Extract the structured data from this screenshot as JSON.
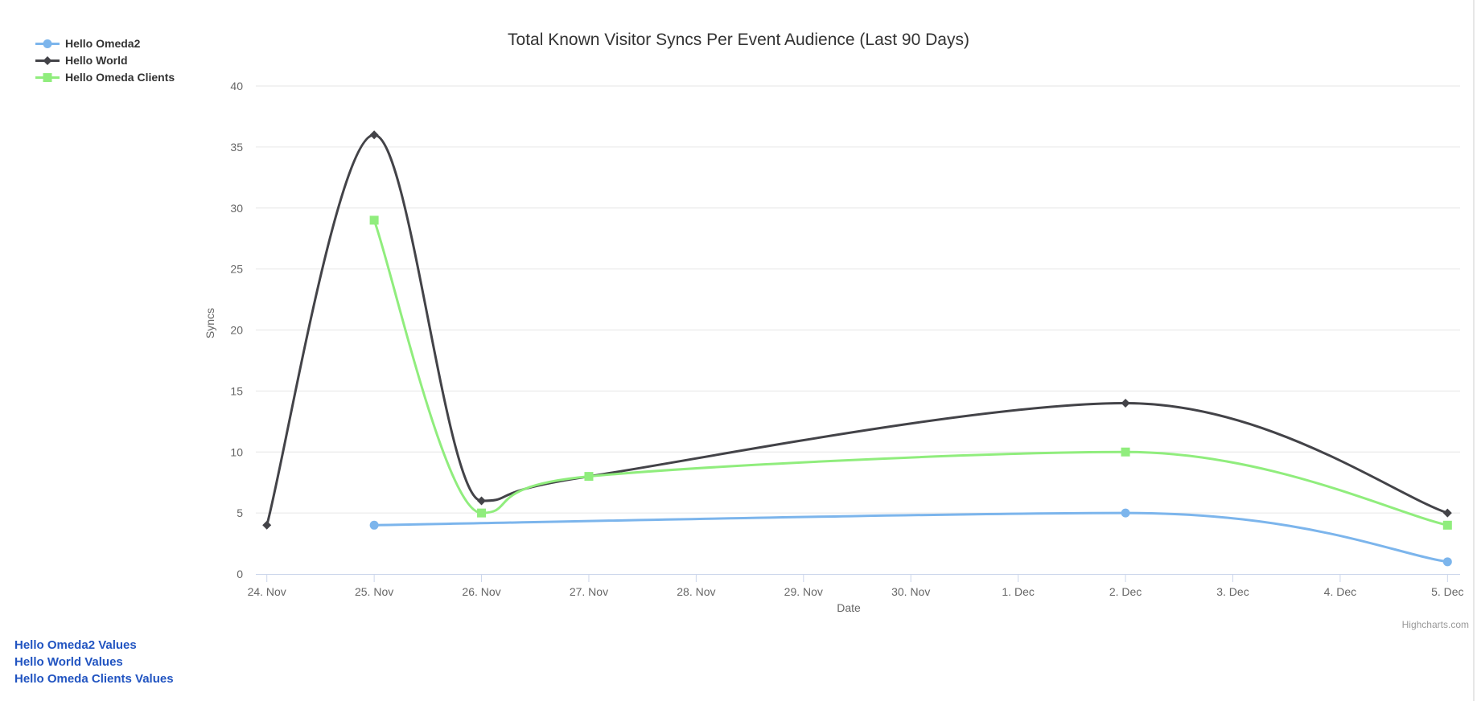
{
  "credits": "Highcharts.com",
  "ui": {
    "link_color": "#2154c1",
    "credits_color": "#999999",
    "right_border_color": "#e7e7e7"
  },
  "links": [
    {
      "label": "Hello Omeda2 Values"
    },
    {
      "label": "Hello World Values"
    },
    {
      "label": "Hello Omeda Clients Values"
    }
  ],
  "chart_data": {
    "type": "line",
    "subtype": "spline",
    "title": "Total Known Visitor Syncs Per Event Audience (Last 90 Days)",
    "xlabel": "Date",
    "ylabel": "Syncs",
    "ylim": [
      0,
      40
    ],
    "y_ticks": [
      0,
      5,
      10,
      15,
      20,
      25,
      30,
      35,
      40
    ],
    "x_categories": [
      "24. Nov",
      "25. Nov",
      "26. Nov",
      "27. Nov",
      "28. Nov",
      "29. Nov",
      "30. Nov",
      "1. Dec",
      "2. Dec",
      "3. Dec",
      "4. Dec",
      "5. Dec"
    ],
    "grid": true,
    "legend_position": "top-left",
    "series": [
      {
        "name": "Hello Omeda2",
        "color": "#7cb5ec",
        "marker": "circle",
        "points": [
          [
            1,
            4
          ],
          [
            8,
            5
          ],
          [
            11,
            1
          ]
        ]
      },
      {
        "name": "Hello World",
        "color": "#434348",
        "marker": "diamond",
        "points": [
          [
            0,
            4
          ],
          [
            1,
            36
          ],
          [
            2,
            6
          ],
          [
            3,
            8
          ],
          [
            8,
            14
          ],
          [
            11,
            5
          ]
        ]
      },
      {
        "name": "Hello Omeda Clients",
        "color": "#90ed7d",
        "marker": "square",
        "points": [
          [
            1,
            29
          ],
          [
            2,
            5
          ],
          [
            3,
            8
          ],
          [
            8,
            10
          ],
          [
            11,
            4
          ]
        ]
      }
    ],
    "style": {
      "grid_color": "#e6e6e6",
      "axis_line_color": "#ccd6eb",
      "tick_label_color": "#666666",
      "title_color": "#333333"
    }
  }
}
